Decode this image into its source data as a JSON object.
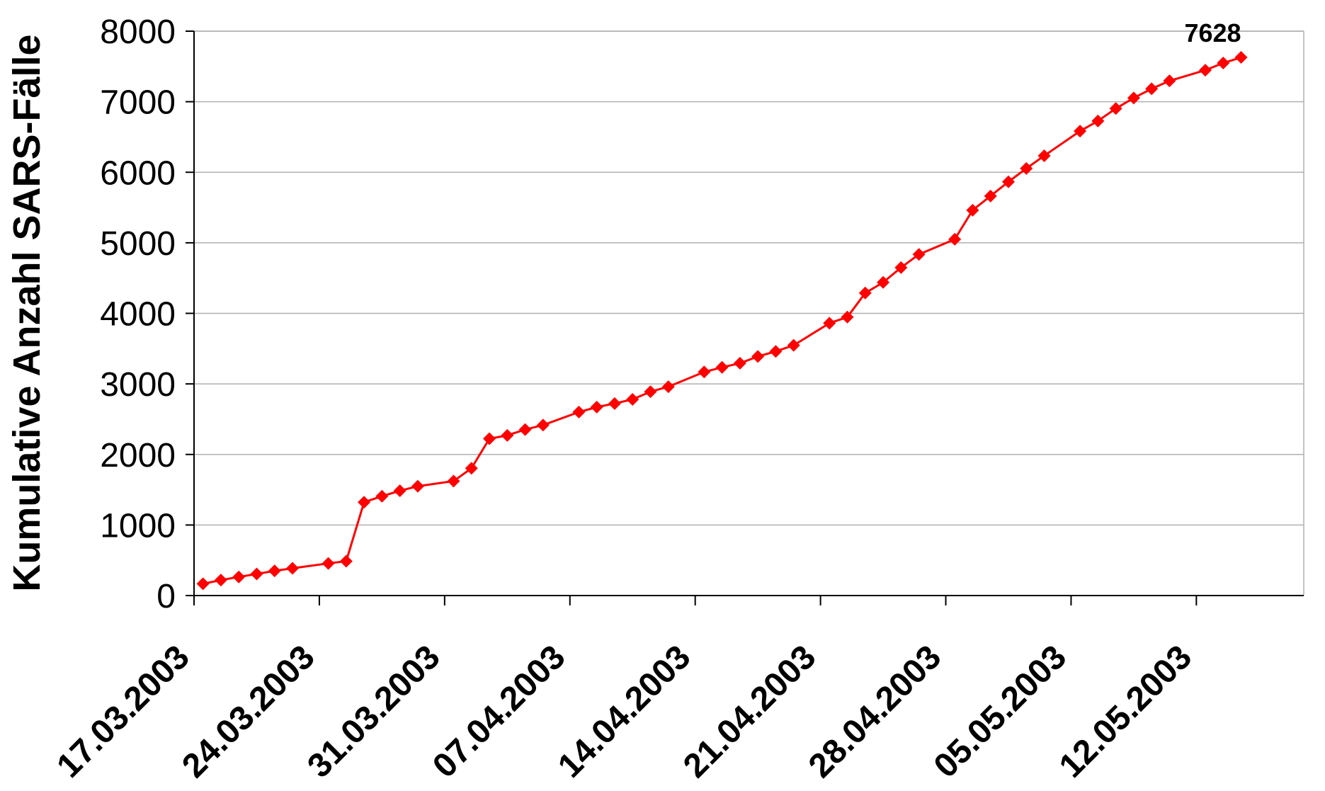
{
  "chart_data": {
    "type": "line",
    "title": "",
    "xlabel": "",
    "ylabel": "Kumulative Anzahl SARS-Fälle",
    "ylim": [
      0,
      8000
    ],
    "yticks": [
      0,
      1000,
      2000,
      3000,
      4000,
      5000,
      6000,
      7000,
      8000
    ],
    "xlim": [
      "2003-03-17",
      "2003-05-18"
    ],
    "xtick_labels": [
      "17.03.2003",
      "24.03.2003",
      "31.03.2003",
      "07.04.2003",
      "14.04.2003",
      "21.04.2003",
      "28.04.2003",
      "05.05.2003",
      "12.05.2003"
    ],
    "grid": "horizontal",
    "legend": "none",
    "color": "#ff0000",
    "marker": "diamond",
    "series": [
      {
        "points": [
          [
            "2003-03-17",
            167
          ],
          [
            "2003-03-18",
            219
          ],
          [
            "2003-03-19",
            264
          ],
          [
            "2003-03-20",
            306
          ],
          [
            "2003-03-21",
            350
          ],
          [
            "2003-03-22",
            386
          ],
          [
            "2003-03-24",
            456
          ],
          [
            "2003-03-25",
            487
          ],
          [
            "2003-03-26",
            1323
          ],
          [
            "2003-03-27",
            1408
          ],
          [
            "2003-03-28",
            1485
          ],
          [
            "2003-03-29",
            1550
          ],
          [
            "2003-03-31",
            1622
          ],
          [
            "2003-04-01",
            1804
          ],
          [
            "2003-04-02",
            2223
          ],
          [
            "2003-04-03",
            2270
          ],
          [
            "2003-04-04",
            2353
          ],
          [
            "2003-04-05",
            2416
          ],
          [
            "2003-04-07",
            2601
          ],
          [
            "2003-04-08",
            2671
          ],
          [
            "2003-04-09",
            2722
          ],
          [
            "2003-04-10",
            2781
          ],
          [
            "2003-04-11",
            2890
          ],
          [
            "2003-04-12",
            2960
          ],
          [
            "2003-04-14",
            3169
          ],
          [
            "2003-04-15",
            3235
          ],
          [
            "2003-04-16",
            3293
          ],
          [
            "2003-04-17",
            3389
          ],
          [
            "2003-04-18",
            3461
          ],
          [
            "2003-04-19",
            3547
          ],
          [
            "2003-04-21",
            3861
          ],
          [
            "2003-04-22",
            3947
          ],
          [
            "2003-04-23",
            4288
          ],
          [
            "2003-04-24",
            4439
          ],
          [
            "2003-04-25",
            4649
          ],
          [
            "2003-04-26",
            4836
          ],
          [
            "2003-04-28",
            5050
          ],
          [
            "2003-04-29",
            5462
          ],
          [
            "2003-04-30",
            5663
          ],
          [
            "2003-05-01",
            5865
          ],
          [
            "2003-05-02",
            6054
          ],
          [
            "2003-05-03",
            6234
          ],
          [
            "2003-05-05",
            6583
          ],
          [
            "2003-05-06",
            6727
          ],
          [
            "2003-05-07",
            6903
          ],
          [
            "2003-05-08",
            7053
          ],
          [
            "2003-05-09",
            7183
          ],
          [
            "2003-05-10",
            7296
          ],
          [
            "2003-05-12",
            7447
          ],
          [
            "2003-05-13",
            7548
          ],
          [
            "2003-05-14",
            7628
          ]
        ]
      }
    ],
    "annotations": [
      {
        "text": "7628",
        "date": "2003-05-14",
        "value": 7628
      }
    ]
  }
}
